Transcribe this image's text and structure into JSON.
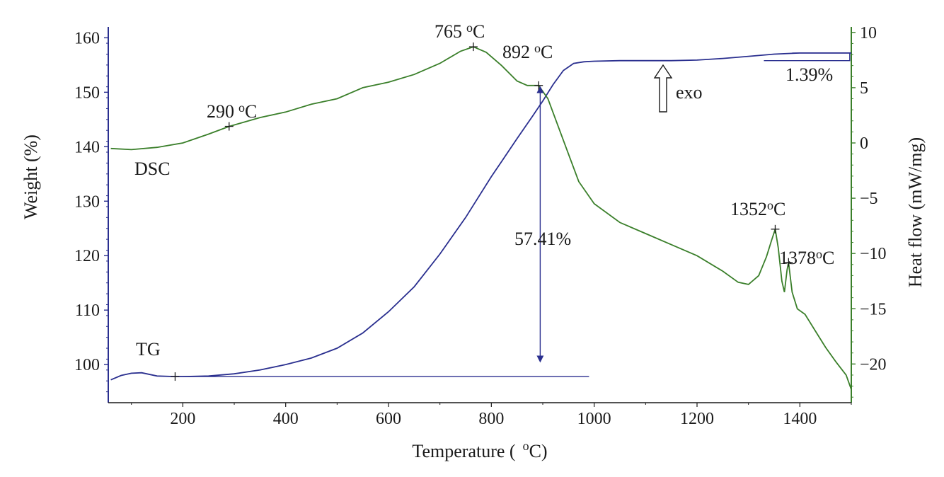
{
  "chart_data": {
    "type": "line",
    "xlabel": "Temperature ( °C)",
    "ylabel_left": "Weight (%)",
    "ylabel_right": "Heat flow (mW/mg)",
    "xlim": [
      55,
      1500
    ],
    "ylim_left": [
      93,
      162
    ],
    "ylim_right": [
      -23.5,
      10.5
    ],
    "x_ticks": [
      200,
      400,
      600,
      800,
      1000,
      1200,
      1400
    ],
    "y_left_ticks": [
      100,
      110,
      120,
      130,
      140,
      150,
      160
    ],
    "y_right_ticks": [
      -20,
      -15,
      -10,
      -5,
      0,
      5,
      10
    ],
    "series": [
      {
        "name": "TG",
        "axis": "left",
        "color": "#2a2f8f",
        "x": [
          60,
          80,
          100,
          120,
          150,
          185,
          200,
          250,
          300,
          350,
          400,
          450,
          500,
          550,
          600,
          650,
          700,
          750,
          800,
          820,
          850,
          880,
          900,
          920,
          940,
          960,
          980,
          1000,
          1050,
          1100,
          1150,
          1200,
          1250,
          1300,
          1350,
          1400,
          1450,
          1500
        ],
        "values": [
          97.2,
          98.0,
          98.4,
          98.5,
          97.9,
          97.8,
          97.8,
          97.9,
          98.3,
          99.0,
          100.0,
          101.2,
          103.0,
          105.8,
          109.7,
          114.3,
          120.3,
          127.0,
          134.5,
          137.3,
          141.5,
          145.6,
          148.4,
          151.4,
          154.0,
          155.3,
          155.6,
          155.7,
          155.8,
          155.8,
          155.8,
          155.9,
          156.2,
          156.6,
          157.0,
          157.2,
          157.2,
          157.2
        ]
      },
      {
        "name": "DSC",
        "axis": "right",
        "color": "#3a7f2a",
        "x": [
          60,
          100,
          150,
          200,
          250,
          290,
          350,
          400,
          450,
          500,
          550,
          600,
          650,
          700,
          740,
          765,
          790,
          820,
          850,
          870,
          892,
          910,
          930,
          950,
          970,
          1000,
          1050,
          1100,
          1150,
          1200,
          1250,
          1280,
          1300,
          1320,
          1335,
          1345,
          1352,
          1358,
          1365,
          1370,
          1375,
          1378,
          1385,
          1395,
          1410,
          1430,
          1450,
          1470,
          1490,
          1500
        ],
        "values": [
          -0.5,
          -0.6,
          -0.4,
          0.0,
          0.8,
          1.5,
          2.3,
          2.8,
          3.5,
          4.0,
          5.0,
          5.5,
          6.2,
          7.2,
          8.3,
          8.7,
          8.2,
          7.0,
          5.6,
          5.2,
          5.2,
          4.0,
          1.5,
          -1.0,
          -3.5,
          -5.5,
          -7.2,
          -8.2,
          -9.2,
          -10.2,
          -11.6,
          -12.6,
          -12.8,
          -12.0,
          -10.3,
          -8.8,
          -7.8,
          -9.5,
          -12.5,
          -13.5,
          -11.5,
          -10.8,
          -13.5,
          -15.0,
          -15.5,
          -17.0,
          -18.5,
          -19.8,
          -21.0,
          -22.3
        ]
      }
    ],
    "baseline": {
      "x": [
        185,
        990
      ],
      "value": 97.8
    },
    "axis_labels": {
      "y_left": "Weight (%)",
      "y_right": "Heat flow (mW/mg)",
      "x_main": "Temperature (",
      "x_sup": "o",
      "x_end": "C)"
    },
    "annotations": [
      {
        "id": "peak-290",
        "num": "290",
        "sup": "o",
        "unit": "C",
        "x": 290,
        "y": 1.5,
        "axis": "right"
      },
      {
        "id": "peak-765",
        "num": "765",
        "sup": "o",
        "unit": "C",
        "x": 765,
        "y": 8.7,
        "axis": "right"
      },
      {
        "id": "peak-892",
        "num": "892",
        "sup": "o",
        "unit": "C",
        "x": 892,
        "y": 5.2,
        "axis": "right"
      },
      {
        "id": "peak-1352",
        "num": "1352",
        "sup": "o",
        "unit": "C",
        "x": 1352,
        "y": -7.8,
        "axis": "right"
      },
      {
        "id": "peak-1378",
        "num": "1378",
        "sup": "o",
        "unit": "C",
        "x": 1378,
        "y": -10.8,
        "axis": "right"
      }
    ],
    "labels": {
      "dsc": "DSC",
      "tg": "TG",
      "mass_loss_main": "57.41%",
      "mass_loss_final": "1.39%",
      "exo": "exo"
    }
  }
}
